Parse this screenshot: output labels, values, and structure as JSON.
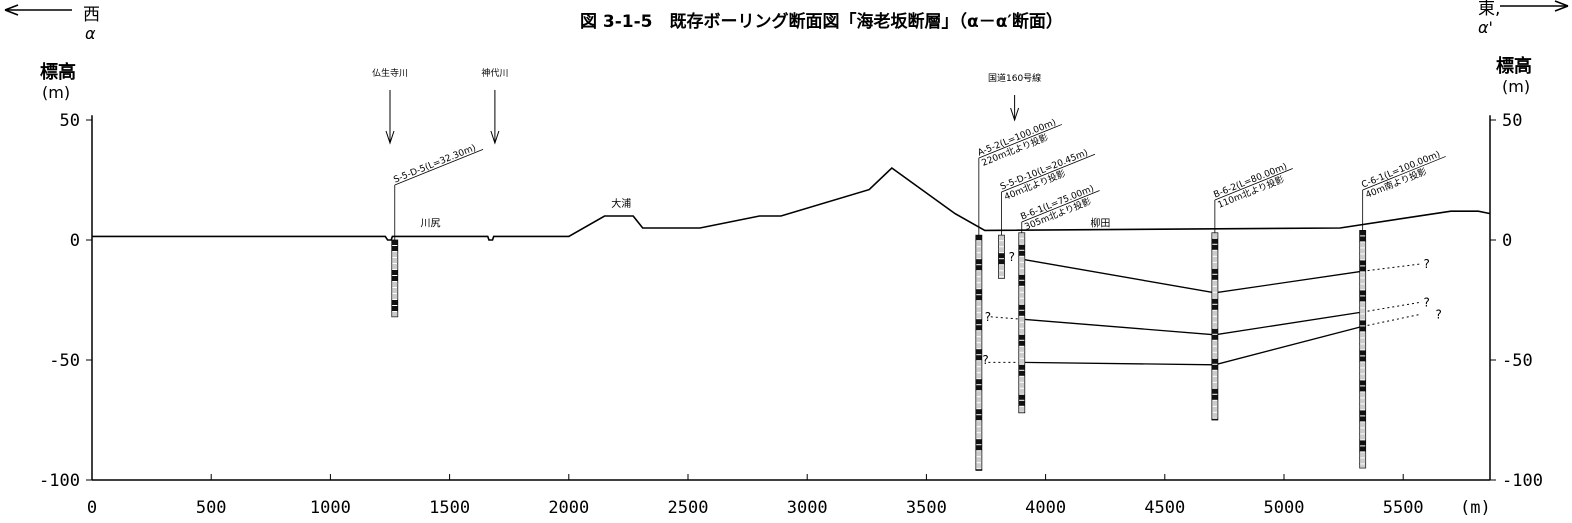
{
  "title": "図 3-1-5　既存ボーリング断面図「海老坂断層」（α－α′断面）",
  "west_label": "西",
  "west_alpha": "α",
  "east_label": "東,",
  "east_alpha": "α'",
  "y_axis_label_left": [
    "標高",
    "(m)"
  ],
  "y_axis_label_right": [
    "標高",
    "(m)"
  ],
  "x_unit": "(m)",
  "chart_data": {
    "type": "cross-section",
    "xlim": [
      0,
      5865
    ],
    "ylim": [
      -100,
      50
    ],
    "x_ticks": [
      0,
      500,
      1000,
      1500,
      2000,
      2500,
      3000,
      3500,
      4000,
      4500,
      5000,
      5500
    ],
    "y_ticks": [
      50,
      0,
      -50,
      -100
    ],
    "ground_profile": [
      [
        0,
        1.5
      ],
      [
        1230,
        1.5
      ],
      [
        1240,
        0
      ],
      [
        1255,
        0
      ],
      [
        1260,
        1.5
      ],
      [
        1660,
        1.5
      ],
      [
        1665,
        0
      ],
      [
        1680,
        0
      ],
      [
        1685,
        1.5
      ],
      [
        2000,
        1.5
      ],
      [
        2150,
        10
      ],
      [
        2270,
        10
      ],
      [
        2310,
        5
      ],
      [
        2550,
        5
      ],
      [
        2800,
        10
      ],
      [
        2890,
        10
      ],
      [
        3260,
        21
      ],
      [
        3355,
        30
      ],
      [
        3620,
        11
      ],
      [
        3745,
        4
      ],
      [
        5235,
        5
      ],
      [
        5700,
        12
      ],
      [
        5815,
        12
      ],
      [
        5865,
        11
      ]
    ],
    "place_names": [
      {
        "name": "川尻",
        "x": 1420,
        "y": 4
      },
      {
        "name": "大浦",
        "x": 2220,
        "y": 12
      },
      {
        "name": "柳田",
        "x": 4230,
        "y": 4
      }
    ],
    "arrows": [
      {
        "label": "仏生寺川",
        "x": 1250
      },
      {
        "label": "神代川",
        "x": 1690
      },
      {
        "label": "国道160号線",
        "x": 3870
      }
    ],
    "boreholes": [
      {
        "name": "S-5-D-5(L=32.30m)",
        "note": "",
        "x": 1270,
        "top": 0,
        "bottom": -32
      },
      {
        "name": "A-5-2(L=100.00m)",
        "note": "220m北より投影",
        "x": 3720,
        "top": 2,
        "bottom": -96
      },
      {
        "name": "S-5-D-10(L=20.45m)",
        "note": "40m北より投影",
        "x": 3815,
        "top": 2,
        "bottom": -16
      },
      {
        "name": "B-6-1(L=75.00m)",
        "note": "305m北より投影",
        "x": 3900,
        "top": 3,
        "bottom": -72
      },
      {
        "name": "B-6-2(L=80.00m)",
        "note": "110m北より投影",
        "x": 4710,
        "top": 3,
        "bottom": -75
      },
      {
        "name": "C-6-1(L=100.00m)",
        "note": "40m南より投影",
        "x": 5330,
        "top": 4,
        "bottom": -95
      }
    ],
    "horizons": [
      {
        "points": [
          [
            3900,
            -8
          ],
          [
            4710,
            -22
          ],
          [
            5330,
            -13
          ]
        ],
        "dotted_right": [
          5330,
          -13,
          5570,
          -10
        ],
        "dotted_left": null
      },
      {
        "points": [
          [
            3900,
            -33
          ],
          [
            4710,
            -39.5
          ],
          [
            5330,
            -30
          ]
        ],
        "dotted_right": [
          5330,
          -30,
          5570,
          -26
        ],
        "dotted_left": [
          3770,
          -32,
          3900,
          -33
        ]
      },
      {
        "points": [
          [
            3900,
            -51
          ],
          [
            4710,
            -52
          ],
          [
            5330,
            -36
          ]
        ],
        "dotted_right": [
          5330,
          -36,
          5570,
          -31
        ],
        "dotted_left": [
          3760,
          -51,
          3900,
          -51
        ]
      }
    ],
    "question_marks": [
      {
        "text": "?",
        "x": 3845,
        "y": -7
      },
      {
        "text": "?",
        "x": 3745,
        "y": -32
      },
      {
        "text": "?",
        "x": 3735,
        "y": -50
      },
      {
        "text": "?",
        "x": 5585,
        "y": -10
      },
      {
        "text": "?",
        "x": 5585,
        "y": -26
      },
      {
        "text": "?",
        "x": 5585,
        "y": -31
      }
    ]
  }
}
